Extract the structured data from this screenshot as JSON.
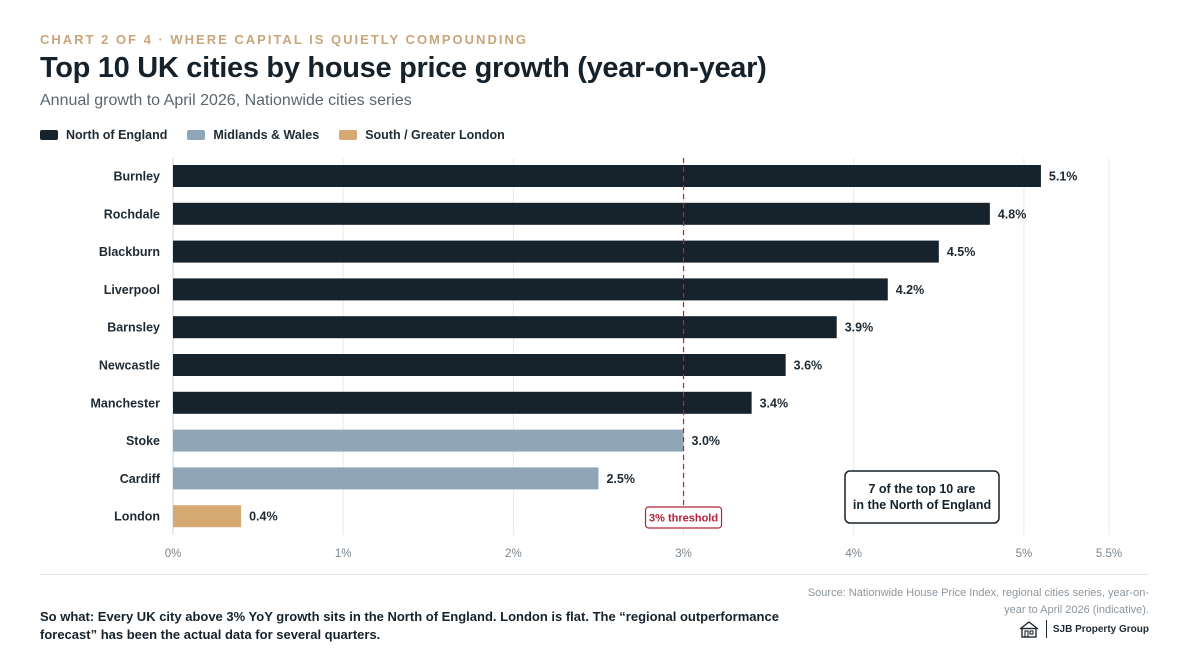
{
  "header": {
    "kicker": "CHART 2 OF 4 · WHERE CAPITAL IS QUIETLY COMPOUNDING",
    "title": "Top 10 UK cities by house price growth (year-on-year)",
    "subtitle": "Annual growth to April 2026, Nationwide cities series"
  },
  "legend": [
    {
      "label": "North of England",
      "color": "#16222c"
    },
    {
      "label": "Midlands & Wales",
      "color": "#8fa6b8"
    },
    {
      "label": "South / Greater London",
      "color": "#d6a872"
    }
  ],
  "chart_data": {
    "type": "bar",
    "orientation": "horizontal",
    "categories": [
      "Burnley",
      "Rochdale",
      "Blackburn",
      "Liverpool",
      "Barnsley",
      "Newcastle",
      "Manchester",
      "Stoke",
      "Cardiff",
      "London"
    ],
    "values": [
      5.1,
      4.8,
      4.5,
      4.2,
      3.9,
      3.6,
      3.4,
      3.0,
      2.5,
      0.4
    ],
    "value_labels": [
      "5.1%",
      "4.8%",
      "4.5%",
      "4.2%",
      "3.9%",
      "3.6%",
      "3.4%",
      "3.0%",
      "2.5%",
      "0.4%"
    ],
    "region": [
      "North of England",
      "North of England",
      "North of England",
      "North of England",
      "North of England",
      "North of England",
      "North of England",
      "Midlands & Wales",
      "Midlands & Wales",
      "South / Greater London"
    ],
    "xlim": [
      0,
      5.5
    ],
    "x_ticks": [
      0,
      1,
      2,
      3,
      4,
      5,
      5.5
    ],
    "x_tick_labels": [
      "0%",
      "1%",
      "2%",
      "3%",
      "4%",
      "5%",
      "5.5%"
    ],
    "grid": true,
    "reference_line": {
      "value": 3,
      "label": "3% threshold",
      "color": "#b5233a"
    },
    "annotation": {
      "lines": [
        "7 of the top 10 are",
        "in the North of England"
      ]
    }
  },
  "footer": {
    "source": "Source: Nationwide House Price Index, regional cities series, year-on-year to April 2026 (indicative).",
    "so_what": "So what: Every UK city above 3% YoY growth sits in the North of England. London is flat. The “regional outperformance forecast” has been the actual data for several quarters.",
    "brand": "SJB Property Group"
  }
}
